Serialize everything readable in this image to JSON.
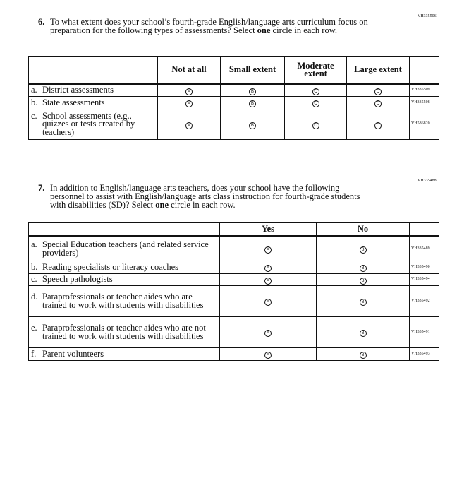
{
  "q6": {
    "code": "VH335506",
    "number": "6.",
    "text_before": "To what extent does your school’s fourth-grade English/language arts curriculum focus on preparation for the following types of assessments? Select ",
    "text_bold": "one",
    "text_after": " circle in each row.",
    "columns": [
      "Not at all",
      "Small extent",
      "Moderate extent",
      "Large extent"
    ],
    "bubbles": [
      "A",
      "B",
      "C",
      "D"
    ],
    "rows": [
      {
        "letter": "a.",
        "label": "District assessments",
        "code": "VH335509"
      },
      {
        "letter": "b.",
        "label": "State assessments",
        "code": "VH335508"
      },
      {
        "letter": "c.",
        "label": "School assessments (e.g., quizzes or tests created by teachers)",
        "code": "VH586820"
      }
    ]
  },
  "q7": {
    "code": "VH335488",
    "number": "7.",
    "text_before": "In addition to English/language arts teachers, does your school have the following personnel to assist with English/language arts class instruction for fourth-grade students with disabilities (SD)? Select ",
    "text_bold": "one",
    "text_after": " circle in each row.",
    "columns": [
      "Yes",
      "No"
    ],
    "bubbles": [
      "A",
      "B"
    ],
    "rows": [
      {
        "letter": "a.",
        "label": "Special Education teachers (and related service providers)",
        "code": "VH335489"
      },
      {
        "letter": "b.",
        "label": "Reading specialists or literacy coaches",
        "code": "VH335490"
      },
      {
        "letter": "c.",
        "label": "Speech pathologists",
        "code": "VH335494"
      },
      {
        "letter": "d.",
        "label": "Paraprofessionals or teacher aides who are trained to work with students with disabilities",
        "code": "VH335492"
      },
      {
        "letter": "e.",
        "label": "Paraprofessionals or teacher aides who are not trained to work with students with disabilities",
        "code": "VH335491"
      },
      {
        "letter": "f.",
        "label": "Parent volunteers",
        "code": "VH335493"
      }
    ]
  }
}
